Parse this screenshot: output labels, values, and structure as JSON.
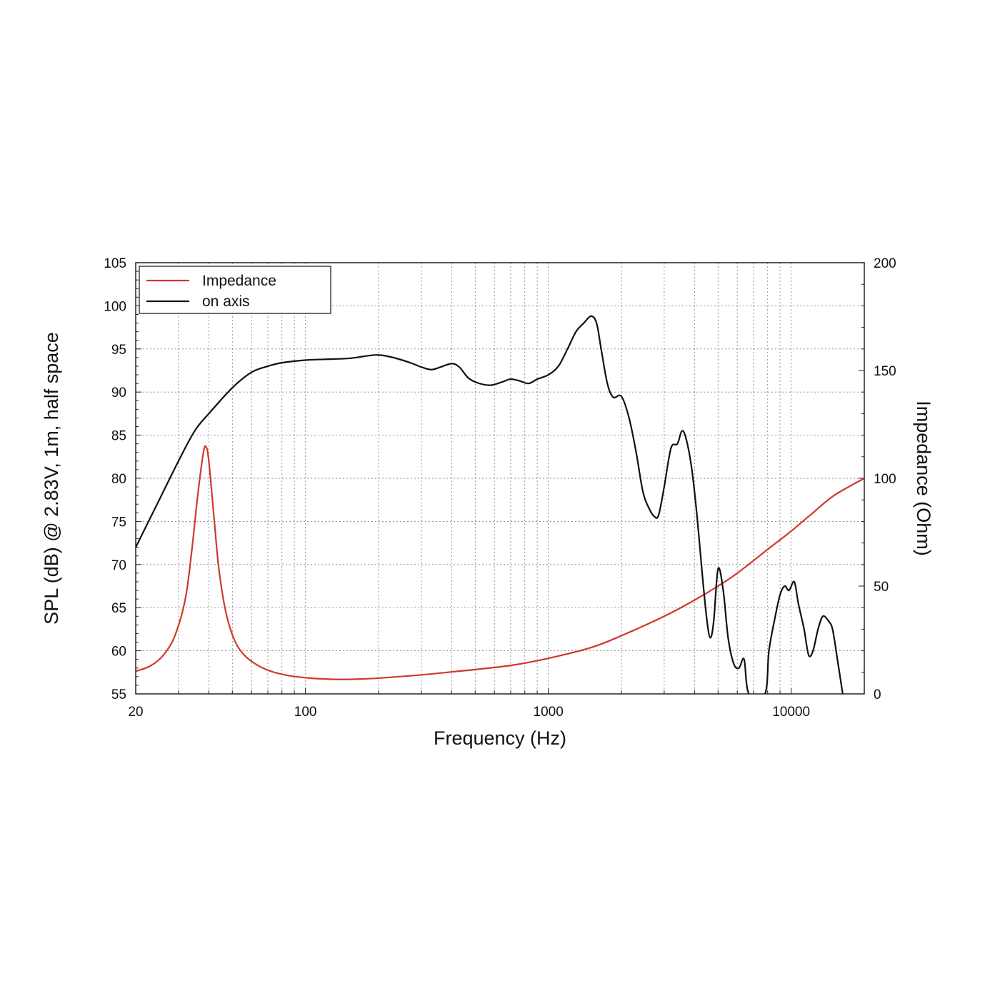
{
  "chart_data": {
    "type": "line",
    "title": "",
    "xlabel": "Frequency (Hz)",
    "ylabel_left": "SPL (dB) @ 2.83V, 1m, half space",
    "ylabel_right": "Impedance (Ohm)",
    "x_scale": "log",
    "xlim": [
      20,
      20000
    ],
    "ylim_left": [
      55,
      105
    ],
    "ylim_right": [
      0,
      200
    ],
    "x_tick_labels": [
      "20",
      "100",
      "1000",
      "10000"
    ],
    "y_left_tick_labels": [
      "55",
      "60",
      "65",
      "70",
      "75",
      "80",
      "85",
      "90",
      "95",
      "100",
      "105"
    ],
    "y_right_tick_labels": [
      "0",
      "50",
      "100",
      "150",
      "200"
    ],
    "grid": true,
    "legend_position": "top-left",
    "series": [
      {
        "name": "Impedance",
        "color": "#d0392b",
        "axis": "right",
        "points": [
          [
            20,
            10.5
          ],
          [
            23,
            13
          ],
          [
            26,
            18
          ],
          [
            29,
            27
          ],
          [
            32,
            44
          ],
          [
            34,
            66
          ],
          [
            36,
            92
          ],
          [
            38,
            112
          ],
          [
            39,
            114.5
          ],
          [
            40,
            108
          ],
          [
            42,
            82
          ],
          [
            44,
            58
          ],
          [
            47,
            38
          ],
          [
            51,
            25
          ],
          [
            56,
            18
          ],
          [
            63,
            13.5
          ],
          [
            72,
            10.5
          ],
          [
            85,
            8.5
          ],
          [
            100,
            7.5
          ],
          [
            120,
            6.9
          ],
          [
            140,
            6.7
          ],
          [
            170,
            6.9
          ],
          [
            200,
            7.3
          ],
          [
            300,
            8.8
          ],
          [
            400,
            10.2
          ],
          [
            500,
            11.3
          ],
          [
            700,
            13.2
          ],
          [
            1000,
            16.5
          ],
          [
            1500,
            21.5
          ],
          [
            2000,
            27
          ],
          [
            3000,
            36
          ],
          [
            4000,
            43.5
          ],
          [
            5000,
            50
          ],
          [
            6000,
            56
          ],
          [
            8000,
            67
          ],
          [
            10000,
            75.5
          ],
          [
            12000,
            83
          ],
          [
            15000,
            92
          ],
          [
            20000,
            100
          ]
        ]
      },
      {
        "name": "on axis",
        "color": "#111111",
        "axis": "left",
        "points": [
          [
            20,
            72
          ],
          [
            25,
            77.5
          ],
          [
            30,
            82
          ],
          [
            35,
            85.5
          ],
          [
            40,
            87.5
          ],
          [
            50,
            90.5
          ],
          [
            60,
            92.3
          ],
          [
            70,
            93.0
          ],
          [
            80,
            93.4
          ],
          [
            100,
            93.7
          ],
          [
            120,
            93.8
          ],
          [
            150,
            93.9
          ],
          [
            180,
            94.2
          ],
          [
            200,
            94.3
          ],
          [
            230,
            94.0
          ],
          [
            270,
            93.4
          ],
          [
            300,
            92.9
          ],
          [
            330,
            92.6
          ],
          [
            360,
            92.9
          ],
          [
            400,
            93.3
          ],
          [
            430,
            92.9
          ],
          [
            470,
            91.6
          ],
          [
            520,
            91.0
          ],
          [
            580,
            90.8
          ],
          [
            650,
            91.2
          ],
          [
            700,
            91.5
          ],
          [
            760,
            91.3
          ],
          [
            830,
            91.0
          ],
          [
            900,
            91.5
          ],
          [
            1000,
            92.0
          ],
          [
            1100,
            93.0
          ],
          [
            1200,
            95.0
          ],
          [
            1300,
            97.0
          ],
          [
            1400,
            98.0
          ],
          [
            1500,
            98.8
          ],
          [
            1580,
            98.0
          ],
          [
            1650,
            95.0
          ],
          [
            1750,
            91.0
          ],
          [
            1850,
            89.4
          ],
          [
            2000,
            89.5
          ],
          [
            2150,
            87.0
          ],
          [
            2300,
            83.0
          ],
          [
            2450,
            78.5
          ],
          [
            2600,
            76.5
          ],
          [
            2750,
            75.5
          ],
          [
            2850,
            75.8
          ],
          [
            3000,
            79.0
          ],
          [
            3200,
            83.5
          ],
          [
            3400,
            84.0
          ],
          [
            3550,
            85.5
          ],
          [
            3700,
            84.5
          ],
          [
            3900,
            81.0
          ],
          [
            4100,
            75.5
          ],
          [
            4300,
            69.0
          ],
          [
            4500,
            63.5
          ],
          [
            4650,
            61.5
          ],
          [
            4800,
            63.5
          ],
          [
            5000,
            69.5
          ],
          [
            5250,
            67.0
          ],
          [
            5500,
            61.5
          ],
          [
            5800,
            58.5
          ],
          [
            6100,
            58.0
          ],
          [
            6400,
            59.0
          ],
          [
            6700,
            55.0
          ],
          [
            7800,
            55.0
          ],
          [
            8100,
            60.0
          ],
          [
            8600,
            64.0
          ],
          [
            9000,
            66.5
          ],
          [
            9400,
            67.5
          ],
          [
            9800,
            67.0
          ],
          [
            10300,
            68.0
          ],
          [
            10700,
            65.5
          ],
          [
            11300,
            62.5
          ],
          [
            11800,
            59.5
          ],
          [
            12300,
            60.0
          ],
          [
            12900,
            62.5
          ],
          [
            13500,
            64.0
          ],
          [
            14200,
            63.5
          ],
          [
            14800,
            62.5
          ],
          [
            15500,
            59.0
          ],
          [
            16300,
            55.0
          ]
        ]
      }
    ]
  }
}
